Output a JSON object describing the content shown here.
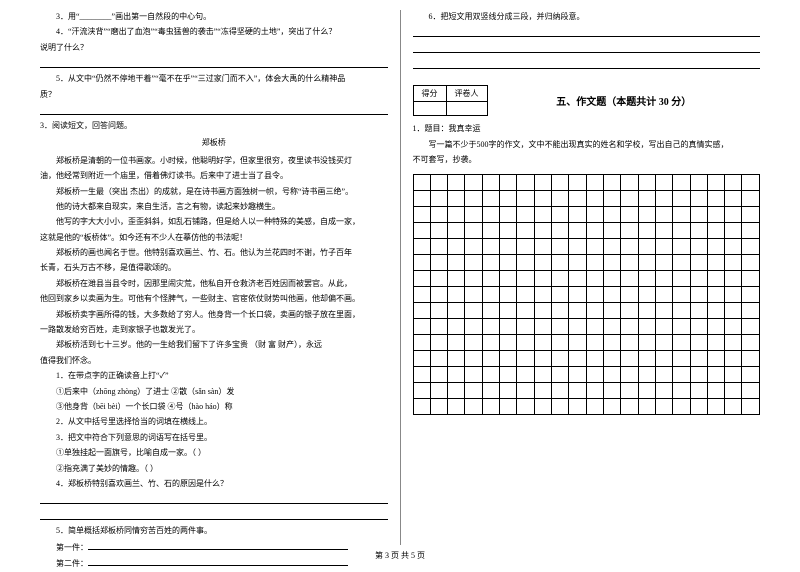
{
  "left": {
    "q3": "3．用“________”画出第一自然段的中心句。",
    "q4a": "4．“汗流浃背”“磨出了血泡”“毒虫猛兽的袭击”“冻得坚硬的土地”，突出了什么？",
    "q4b": "说明了什么？",
    "q5a": "5．从文中“仍然不停地干着”“毫不在乎”“三过家门而不入”，体会大禹的什么精神品",
    "q5b": "质？",
    "q3main": "3．阅读短文，回答问题。",
    "title": "郑板桥",
    "p1a": "郑板桥是清朝的一位书画家。小时候，他聪明好学，但家里很穷，夜里读书没钱买灯",
    "p1b": "油，他经常到附近一个庙里，借着佛灯读书。后来中了进士当了县令。",
    "p2": "郑板桥一生最（突出  杰出）的成就，是在诗书画方面独树一帜，号称“诗书画三绝”。",
    "p3": "他的诗大都来自现实，来自生活，言之有物，读起来妙趣横生。",
    "p4a": "他写的字大大小小，歪歪斜斜，如乱石铺路，但是给人以一种特殊的美感，自成一家，",
    "p4b": "这就是他的“板桥体”。如今还有不少人在摹仿他的书法呢！",
    "p5a": "郑板桥的画也闻名于世。他特别喜欢画兰、竹、石。他认为兰花四时不谢，竹子百年",
    "p5b": "长青，石头万古不移，是值得歌颂的。",
    "p6a": "郑板桥在潍县当县令时，因那里闹灾荒，他私自开仓救济老百姓因而被罢官。从此，",
    "p6b": "他回到家乡以卖画为生。可他有个怪脾气，一些财主、官宦依仗财势叫他画，他却偏不画。",
    "p7a": "郑板桥卖字画所得的钱，大多数给了穷人。他身背一个长口袋，卖画的银子放在里面，",
    "p7b": "一路散发给穷百姓，走到家银子也散发光了。",
    "p8a": "郑板桥活到七十三岁。他的一生给我们留下了许多宝贵          （财  富  财产），永远",
    "p8b": "值得我们怀念。",
    "sq1": "1．在带点字的正确读音上打“✓”",
    "sq1a": "①后来中（zhōng zhòng）了进士        ②散（sǎn sàn）发",
    "sq1b": "③他身背（bēi bèi）一个长口袋        ④号（hào háo）称",
    "sq2": "2．从文中括号里选择恰当的词填在横线上。",
    "sq3": "3．把文中符合下列意思的词语写在括号里。",
    "sq3a": "①单独挂起一面旗号，比喻自成一家。（          ）",
    "sq3b": "②指充满了美妙的情趣。（          ）",
    "sq4": "4．郑板桥特别喜欢画兰、竹、石的原因是什么？",
    "sq5": "5．简单概括郑板桥同情穷苦百姓的两件事。",
    "sq5a": "第一件：",
    "sq5b": "第二件："
  },
  "right": {
    "q6": "6．把短文用双竖线分成三段，并归纳段意。",
    "score_h1": "得分",
    "score_h2": "评卷人",
    "section": "五、作文题（本题共计 30 分）",
    "essay_q": "1．题目：我真幸运",
    "essay_desc1": "写一篇不少于500字的作文，文中不能出现真实的姓名和学校，写出自己的真情实感，",
    "essay_desc2": "不可套写，抄袭。"
  },
  "footer": "第 3 页  共 5 页",
  "grid": {
    "rows": 15,
    "cols": 20
  }
}
